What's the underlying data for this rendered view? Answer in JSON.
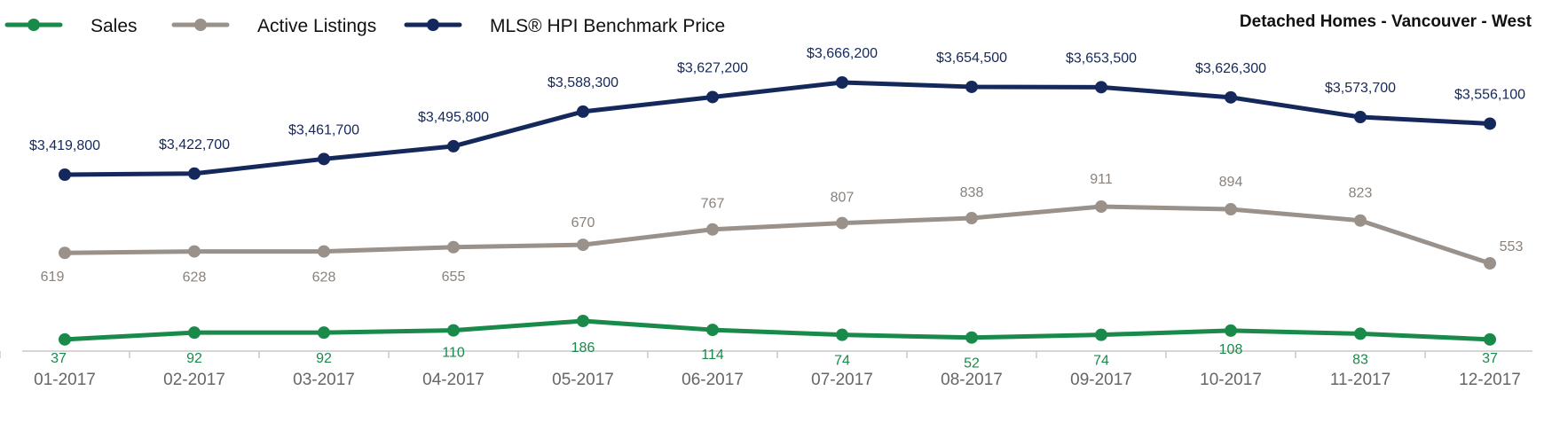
{
  "chart_data": {
    "type": "line",
    "title": "Detached Homes - Vancouver - West",
    "categories": [
      "01-2017",
      "02-2017",
      "03-2017",
      "04-2017",
      "05-2017",
      "06-2017",
      "07-2017",
      "08-2017",
      "09-2017",
      "10-2017",
      "11-2017",
      "12-2017"
    ],
    "series": [
      {
        "name": "Sales",
        "color": "#1a8a4a",
        "values": [
          37,
          92,
          92,
          110,
          186,
          114,
          74,
          52,
          74,
          108,
          83,
          37
        ],
        "labels": [
          "37",
          "92",
          "92",
          "110",
          "186",
          "114",
          "74",
          "52",
          "74",
          "108",
          "83",
          "37"
        ]
      },
      {
        "name": "Active Listings",
        "color": "#9a918a",
        "values": [
          619,
          628,
          628,
          655,
          670,
          767,
          807,
          838,
          911,
          894,
          823,
          553
        ],
        "labels": [
          "619",
          "628",
          "628",
          "655",
          "670",
          "767",
          "807",
          "838",
          "911",
          "894",
          "823",
          "553"
        ]
      },
      {
        "name": "MLS® HPI Benchmark Price",
        "color": "#14285c",
        "values": [
          3419800,
          3422700,
          3461700,
          3495800,
          3588300,
          3627200,
          3666200,
          3654500,
          3653500,
          3626300,
          3573700,
          3556100
        ],
        "labels": [
          "$3,419,800",
          "$3,422,700",
          "$3,461,700",
          "$3,495,800",
          "$3,588,300",
          "$3,627,200",
          "$3,666,200",
          "$3,654,500",
          "$3,653,500",
          "$3,626,300",
          "$3,573,700",
          "$3,556,100"
        ]
      }
    ],
    "legend_position": "top-left",
    "grid": false
  }
}
